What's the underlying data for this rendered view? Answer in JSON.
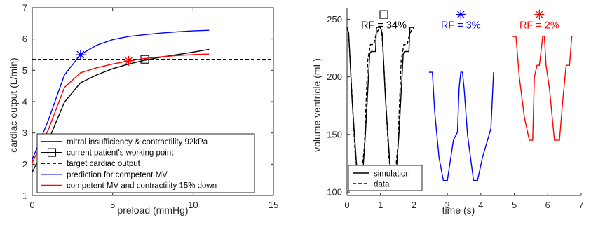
{
  "chart_data": [
    {
      "type": "line",
      "xlabel": "preload (mmHg)",
      "ylabel": "cardiac output (L/min)",
      "xlim": [
        0,
        15
      ],
      "ylim": [
        1,
        7
      ],
      "xticks": [
        0,
        5,
        10,
        15
      ],
      "yticks": [
        1,
        2,
        3,
        4,
        5,
        6,
        7
      ],
      "grid": false,
      "legend_position": "bottom-right",
      "series": [
        {
          "name": "mitral insufficiency & contractility 92kPa",
          "color": "#000000",
          "style": "solid",
          "x": [
            0,
            1,
            2,
            3,
            4,
            5,
            6,
            7,
            8,
            9,
            10,
            11
          ],
          "y": [
            1.75,
            2.75,
            3.98,
            4.6,
            4.85,
            5.05,
            5.2,
            5.32,
            5.42,
            5.5,
            5.58,
            5.67
          ]
        },
        {
          "name": "current patient's working point",
          "color": "#000000",
          "marker": "square",
          "x": [
            7
          ],
          "y": [
            5.35
          ]
        },
        {
          "name": "target cardiac output",
          "color": "#000000",
          "style": "dashed",
          "x": [
            0,
            15
          ],
          "y": [
            5.35,
            5.35
          ]
        },
        {
          "name": "prediction for competent MV",
          "color": "#0000ff",
          "style": "solid",
          "marker_point": {
            "x": 3,
            "y": 5.5,
            "marker": "asterisk"
          },
          "x": [
            0,
            1,
            2,
            3,
            4,
            5,
            6,
            7,
            8,
            9,
            10,
            11
          ],
          "y": [
            2.15,
            3.4,
            4.85,
            5.5,
            5.8,
            5.98,
            6.08,
            6.14,
            6.19,
            6.23,
            6.26,
            6.28
          ]
        },
        {
          "name": "competent MV and contractility 15% down",
          "color": "#ff0000",
          "style": "solid",
          "marker_point": {
            "x": 6,
            "y": 5.3,
            "marker": "asterisk"
          },
          "x": [
            0,
            1,
            2,
            3,
            4,
            5,
            6,
            7,
            8,
            9,
            10,
            11
          ],
          "y": [
            2.05,
            3.1,
            4.45,
            4.92,
            5.08,
            5.2,
            5.3,
            5.38,
            5.43,
            5.47,
            5.5,
            5.52
          ]
        }
      ]
    },
    {
      "type": "line",
      "xlabel": "time (s)",
      "ylabel": "volume ventricle (mL)",
      "xlim": [
        0,
        7
      ],
      "ylim": [
        97,
        260
      ],
      "xticks": [
        0,
        1,
        2,
        3,
        4,
        5,
        6,
        7
      ],
      "yticks": [
        100,
        150,
        200,
        250
      ],
      "grid": false,
      "legend_position": "bottom-left",
      "annotations": [
        {
          "text": "RF = 34%",
          "color": "#000000",
          "x": 1.1,
          "y": 242,
          "marker": "square"
        },
        {
          "text": "RF = 3%",
          "color": "#0000ff",
          "x": 3.4,
          "y": 242,
          "marker": "asterisk"
        },
        {
          "text": "RF = 2%",
          "color": "#ff0000",
          "x": 5.75,
          "y": 242,
          "marker": "asterisk"
        }
      ],
      "series": [
        {
          "name": "simulation",
          "color": "#000000",
          "style": "solid",
          "x": [
            0,
            0.05,
            0.15,
            0.28,
            0.38,
            0.45,
            0.55,
            0.68,
            0.72,
            0.85,
            0.88,
            0.92,
            1.0,
            1.05,
            1.15,
            1.28,
            1.38,
            1.45,
            1.55,
            1.68,
            1.72,
            1.85,
            1.88,
            1.92,
            2.0
          ],
          "y": [
            243,
            238,
            180,
            125,
            108,
            108,
            150,
            220,
            222,
            222,
            243,
            243,
            243,
            238,
            180,
            125,
            108,
            108,
            150,
            220,
            222,
            222,
            243,
            243,
            243
          ]
        },
        {
          "name": "data",
          "color": "#000000",
          "style": "dashed",
          "x": [
            0,
            0.05,
            0.12,
            0.25,
            0.35,
            0.42,
            0.52,
            0.62,
            0.7,
            0.8,
            0.86,
            0.92,
            1.0,
            1.05,
            1.12,
            1.25,
            1.35,
            1.42,
            1.52,
            1.62,
            1.7,
            1.8,
            1.86,
            1.92,
            2.0
          ],
          "y": [
            243,
            235,
            200,
            130,
            110,
            110,
            140,
            215,
            228,
            228,
            236,
            240,
            243,
            235,
            200,
            130,
            110,
            110,
            140,
            215,
            228,
            228,
            236,
            240,
            243
          ]
        },
        {
          "name": "",
          "color": "#0000ff",
          "style": "solid",
          "x": [
            2.45,
            2.55,
            2.62,
            2.75,
            2.88,
            3.0,
            3.18,
            3.3,
            3.35,
            3.4,
            3.45,
            3.5,
            3.6,
            3.78,
            3.9,
            4.05,
            4.2,
            4.3,
            4.38
          ],
          "y": [
            204,
            204,
            170,
            130,
            110,
            110,
            145,
            152,
            190,
            204,
            204,
            190,
            150,
            110,
            110,
            130,
            145,
            155,
            204
          ]
        },
        {
          "name": "",
          "color": "#ff0000",
          "style": "solid",
          "x": [
            4.95,
            5.05,
            5.15,
            5.3,
            5.45,
            5.55,
            5.6,
            5.68,
            5.75,
            5.85,
            5.9,
            5.95,
            6.05,
            6.2,
            6.35,
            6.45,
            6.55,
            6.65,
            6.72
          ],
          "y": [
            235,
            235,
            200,
            165,
            145,
            145,
            200,
            210,
            210,
            235,
            235,
            210,
            190,
            145,
            145,
            180,
            210,
            210,
            235
          ]
        }
      ]
    }
  ]
}
